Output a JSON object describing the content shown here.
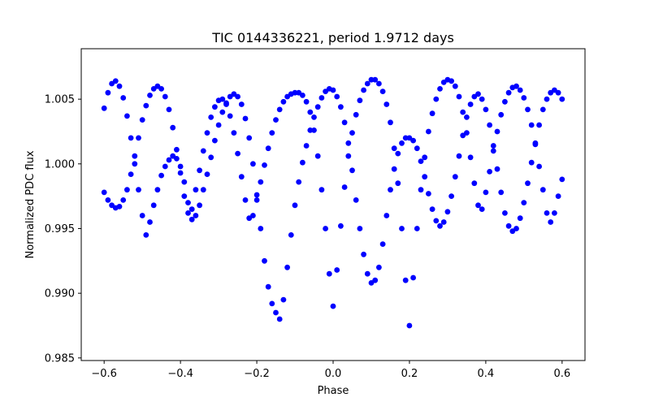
{
  "chart_data": {
    "type": "scatter",
    "title": "TIC 0144336221, period 1.9712 days",
    "xlabel": "Phase",
    "ylabel": "Normalized PDC flux",
    "xlim": [
      -0.66,
      0.66
    ],
    "ylim": [
      0.9848,
      1.0089
    ],
    "x_ticks": [
      -0.6,
      -0.4,
      -0.2,
      0.0,
      0.2,
      0.4,
      0.6
    ],
    "x_tick_labels": [
      "−0.6",
      "−0.4",
      "−0.2",
      "0.0",
      "0.2",
      "0.4",
      "0.6"
    ],
    "y_ticks": [
      0.985,
      0.99,
      0.995,
      1.0,
      1.005
    ],
    "y_tick_labels": [
      "0.985",
      "0.990",
      "0.995",
      "1.000",
      "1.005"
    ],
    "grid": false,
    "legend": false,
    "marker_color": "#0000ff",
    "series": [
      {
        "phase": [
          -0.6,
          -0.59,
          -0.58,
          -0.57,
          -0.56,
          -0.55,
          -0.54,
          -0.53,
          -0.52,
          -0.51,
          -0.5,
          -0.49,
          -0.48,
          -0.47,
          -0.46,
          -0.45,
          -0.44,
          -0.43,
          -0.42,
          -0.41,
          -0.4,
          -0.39,
          -0.38,
          -0.37,
          -0.36,
          -0.35,
          -0.34,
          -0.33,
          -0.32,
          -0.31,
          -0.3,
          -0.29,
          -0.28,
          -0.27,
          -0.26,
          -0.25,
          -0.24,
          -0.23,
          -0.22,
          -0.21,
          -0.2,
          -0.19,
          -0.18,
          -0.17,
          -0.16,
          -0.15,
          -0.14,
          -0.13,
          -0.12,
          -0.11,
          -0.1,
          -0.09,
          -0.08,
          -0.07,
          -0.06,
          -0.05,
          -0.04,
          -0.03,
          -0.02,
          -0.01,
          0.0,
          0.01,
          0.02,
          0.03,
          0.04,
          0.05,
          0.06,
          0.07,
          0.08,
          0.09,
          0.1,
          0.11,
          0.12,
          0.13,
          0.14,
          0.15,
          0.16,
          0.17,
          0.18,
          0.19,
          0.2,
          0.21,
          0.22,
          0.23,
          0.24,
          0.25,
          0.26,
          0.27,
          0.28,
          0.29,
          0.3,
          0.31,
          0.32,
          0.33,
          0.34,
          0.35,
          0.36,
          0.37,
          0.38,
          0.39,
          0.4,
          0.41,
          0.42,
          0.43,
          0.44,
          0.45,
          0.46,
          0.47,
          0.48,
          0.49,
          0.5,
          0.51,
          0.52,
          0.53,
          0.54,
          0.55,
          0.56,
          0.57,
          0.58,
          0.59,
          0.6
        ],
        "branch_a": [
          1.0043,
          1.0055,
          1.0062,
          1.0064,
          1.006,
          1.0051,
          1.0037,
          1.002,
          1.0,
          0.998,
          0.996,
          0.9945,
          0.9955,
          0.9968,
          0.998,
          0.9991,
          0.9998,
          1.0003,
          1.0006,
          1.0004,
          0.9998,
          0.9986,
          0.997,
          0.9965,
          0.998,
          0.9995,
          1.001,
          1.0024,
          1.0036,
          1.0044,
          1.0049,
          1.005,
          1.0046,
          1.0037,
          1.0024,
          1.0008,
          0.999,
          0.9972,
          0.9958,
          0.996,
          0.9972,
          0.9986,
          0.9999,
          1.0012,
          1.0024,
          1.0034,
          1.0042,
          1.0048,
          1.0052,
          1.0054,
          1.0055,
          1.0055,
          1.0053,
          1.0048,
          1.004,
          1.0026,
          1.0006,
          0.998,
          0.995,
          0.9915,
          0.989,
          0.9918,
          0.9952,
          0.9982,
          1.0006,
          1.0024,
          1.0038,
          1.0049,
          1.0057,
          1.0062,
          1.0065,
          1.0065,
          1.0062,
          1.0056,
          1.0046,
          1.0032,
          1.0012,
          0.9985,
          0.995,
          0.991,
          0.9875,
          0.9912,
          0.995,
          0.998,
          1.0005,
          1.0025,
          1.0039,
          1.005,
          1.0058,
          1.0063,
          1.0065,
          1.0064,
          1.006,
          1.0052,
          1.004,
          1.0024,
          1.0005,
          0.9985,
          0.9968,
          0.9965,
          0.9978,
          0.9994,
          1.001,
          1.0025,
          1.0038,
          1.0048,
          1.0055,
          1.0059,
          1.006,
          1.0057,
          1.0051,
          1.0042,
          1.003,
          1.0015,
          0.9998,
          0.998,
          0.9962,
          0.9955,
          0.9962,
          0.9975,
          0.9988
        ],
        "branch_b": [
          0.9978,
          0.9972,
          0.9968,
          0.9966,
          0.9967,
          0.9972,
          0.998,
          0.9992,
          1.0006,
          1.002,
          1.0034,
          1.0045,
          1.0053,
          1.0058,
          1.006,
          1.0058,
          1.0052,
          1.0042,
          1.0028,
          1.0011,
          0.9993,
          0.9975,
          0.9962,
          0.9957,
          0.996,
          0.9968,
          0.998,
          0.9992,
          1.0005,
          1.0018,
          1.003,
          1.004,
          1.0047,
          1.0052,
          1.0054,
          1.0052,
          1.0046,
          1.0035,
          1.002,
          1.0,
          0.9976,
          0.995,
          0.9925,
          0.9905,
          0.9892,
          0.9885,
          0.988,
          0.9895,
          0.992,
          0.9945,
          0.9968,
          0.9986,
          1.0001,
          1.0014,
          1.0026,
          1.0036,
          1.0044,
          1.0051,
          1.0056,
          1.0058,
          1.0057,
          1.0052,
          1.0044,
          1.0032,
          1.0016,
          0.9995,
          0.9972,
          0.995,
          0.993,
          0.9915,
          0.9908,
          0.991,
          0.992,
          0.9938,
          0.996,
          0.998,
          0.9996,
          1.0008,
          1.0016,
          1.002,
          1.002,
          1.0018,
          1.0012,
          1.0002,
          0.999,
          0.9977,
          0.9965,
          0.9956,
          0.9952,
          0.9955,
          0.9963,
          0.9975,
          0.999,
          1.0006,
          1.0022,
          1.0036,
          1.0046,
          1.0052,
          1.0054,
          1.005,
          1.0042,
          1.003,
          1.0014,
          0.9996,
          0.9978,
          0.9962,
          0.9952,
          0.9948,
          0.995,
          0.9958,
          0.997,
          0.9985,
          1.0001,
          1.0016,
          1.003,
          1.0042,
          1.005,
          1.0055,
          1.0057,
          1.0055,
          1.005
        ]
      }
    ]
  }
}
